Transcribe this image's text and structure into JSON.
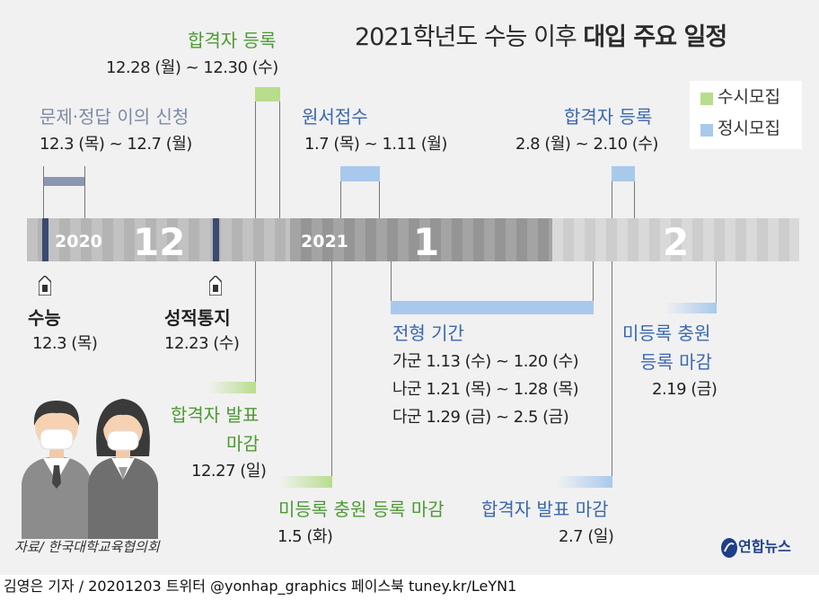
{
  "title": {
    "normal": "2021학년도 수능 이후 ",
    "bold": "대입 주요 일정"
  },
  "legend": {
    "items": [
      {
        "label": "수시모집",
        "color": "#b8dd8c"
      },
      {
        "label": "정시모집",
        "color": "#a9c9ec"
      }
    ]
  },
  "timeline": {
    "year_2020": "2020",
    "month_12": "12",
    "year_2021": "2021",
    "month_1": "1",
    "month_2": "2"
  },
  "events": {
    "objection": {
      "title": "문제·정답 이의 신청",
      "date": "12.3 (목) ~ 12.7 (월)"
    },
    "reg_early": {
      "title": "합격자 등록",
      "date": "12.28 (월) ~ 12.30 (수)"
    },
    "application": {
      "title": "원서접수",
      "date": "1.7 (목) ~ 1.11 (월)"
    },
    "reg_regular": {
      "title": "합격자 등록",
      "date": "2.8 (월) ~ 2.10 (수)"
    },
    "csat": {
      "title": "수능",
      "date": "12.3 (목)"
    },
    "results": {
      "title": "성적통지",
      "date": "12.23 (수)"
    },
    "selection": {
      "title": "전형 기간",
      "rows": [
        "가군 1.13 (수) ~ 1.20 (수)",
        "나군 1.21 (목) ~ 1.28 (목)",
        "다군 1.29 (금) ~ 2.5 (금)"
      ]
    },
    "extra_reg_regular": {
      "title_line1": "미등록 충원",
      "title_line2": "등록 마감",
      "date": "2.19 (금)"
    },
    "announce_early": {
      "title_line1": "합격자 발표",
      "title_line2": "마감",
      "date": "12.27 (일)"
    },
    "extra_reg_early": {
      "title": "미등록 충원 등록 마감",
      "date": "1.5 (화)"
    },
    "announce_regular": {
      "title": "합격자 발표 마감",
      "date": "2.7 (일)"
    }
  },
  "source": "자료/ 한국대학교육협의회",
  "logo": "연합뉴스",
  "footer": "김영은 기자 / 20201203  트위터 @yonhap_graphics  페이스북 tuney.kr/LeYN1"
}
